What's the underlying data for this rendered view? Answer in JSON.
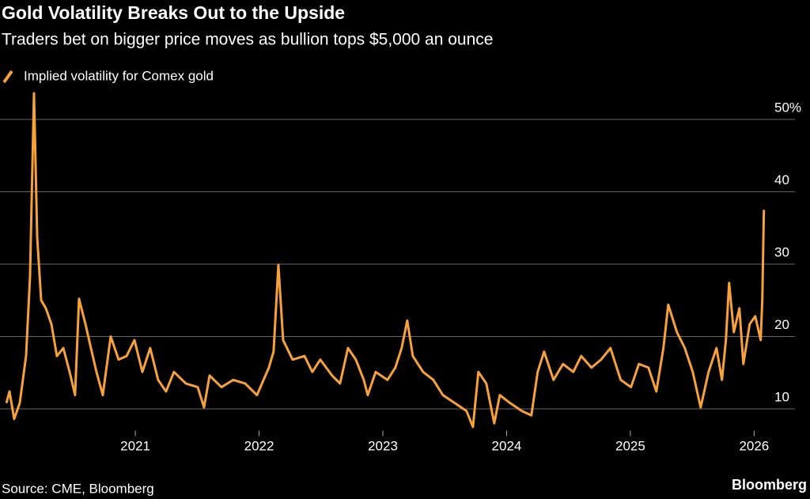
{
  "chart_data": {
    "type": "line",
    "title": "Gold Volatility Breaks Out to the Upside",
    "subtitle": "Traders bet on bigger price moves as bullion tops $5,000 an ounce",
    "source": "Source: CME, Bloomberg",
    "logo": "Bloomberg",
    "x": [
      2019.958,
      2019.983,
      2020.021,
      2020.066,
      2020.117,
      2020.149,
      2020.181,
      2020.207,
      2020.239,
      2020.277,
      2020.322,
      2020.366,
      2020.418,
      2020.469,
      2020.513,
      2020.545,
      2020.597,
      2020.641,
      2020.686,
      2020.737,
      2020.801,
      2020.865,
      2020.929,
      2020.993,
      2021.057,
      2021.12,
      2021.184,
      2021.248,
      2021.312,
      2021.408,
      2021.504,
      2021.555,
      2021.6,
      2021.696,
      2021.791,
      2021.887,
      2021.983,
      2022.079,
      2022.117,
      2022.156,
      2022.194,
      2022.271,
      2022.367,
      2022.43,
      2022.494,
      2022.59,
      2022.654,
      2022.718,
      2022.782,
      2022.846,
      2022.878,
      2022.942,
      2023.037,
      2023.101,
      2023.152,
      2023.197,
      2023.242,
      2023.325,
      2023.408,
      2023.485,
      2023.581,
      2023.676,
      2023.728,
      2023.772,
      2023.836,
      2023.9,
      2023.945,
      2024.028,
      2024.124,
      2024.2,
      2024.251,
      2024.303,
      2024.379,
      2024.456,
      2024.539,
      2024.603,
      2024.686,
      2024.763,
      2024.839,
      2024.922,
      2025.005,
      2025.069,
      2025.146,
      2025.21,
      2025.267,
      2025.306,
      2025.376,
      2025.44,
      2025.504,
      2025.568,
      2025.632,
      2025.696,
      2025.74,
      2025.772,
      2025.798,
      2025.836,
      2025.881,
      2025.913,
      2025.964,
      2026.009,
      2026.053,
      2026.066,
      2026.079
    ],
    "series": [
      {
        "name": "Implied volatility for Comex gold",
        "color": "#f7a13b",
        "values": [
          10.8,
          12.4,
          8.6,
          10.8,
          17.3,
          28.3,
          53.6,
          33.7,
          25,
          23.9,
          21.7,
          17.3,
          18.4,
          15.1,
          11.9,
          25.2,
          21.7,
          18.4,
          15.1,
          11.9,
          20,
          16.8,
          17.3,
          19.5,
          15.1,
          18.4,
          14,
          12.4,
          15.1,
          13.5,
          13,
          10.2,
          14.6,
          13,
          14,
          13.5,
          11.9,
          15.7,
          17.9,
          29.9,
          19.5,
          16.8,
          17.3,
          15.1,
          16.8,
          14.6,
          13.5,
          18.4,
          16.8,
          14,
          11.9,
          15.1,
          14,
          15.7,
          18.4,
          22.2,
          17.3,
          15.1,
          14,
          11.9,
          10.8,
          9.7,
          7.5,
          15.1,
          13.5,
          8,
          11.9,
          10.8,
          9.7,
          9.1,
          15.1,
          17.9,
          14,
          16.2,
          15.1,
          17.3,
          15.7,
          16.8,
          18.4,
          14,
          13,
          16.2,
          15.7,
          12.4,
          18.4,
          24.4,
          20.6,
          18.4,
          15.1,
          10.2,
          15.1,
          18.4,
          14,
          19.5,
          27.4,
          20.6,
          23.9,
          16.2,
          21.7,
          22.8,
          19.5,
          25,
          37.5
        ]
      }
    ],
    "xlim": [
      2019.9,
      2026.1
    ],
    "xticks": [
      2021,
      2022,
      2023,
      2024,
      2025,
      2026
    ],
    "ylim": [
      7,
      54
    ],
    "yticks": [
      10,
      20,
      30,
      40,
      {
        "value": 50,
        "label": "50%"
      }
    ],
    "grid": true
  }
}
